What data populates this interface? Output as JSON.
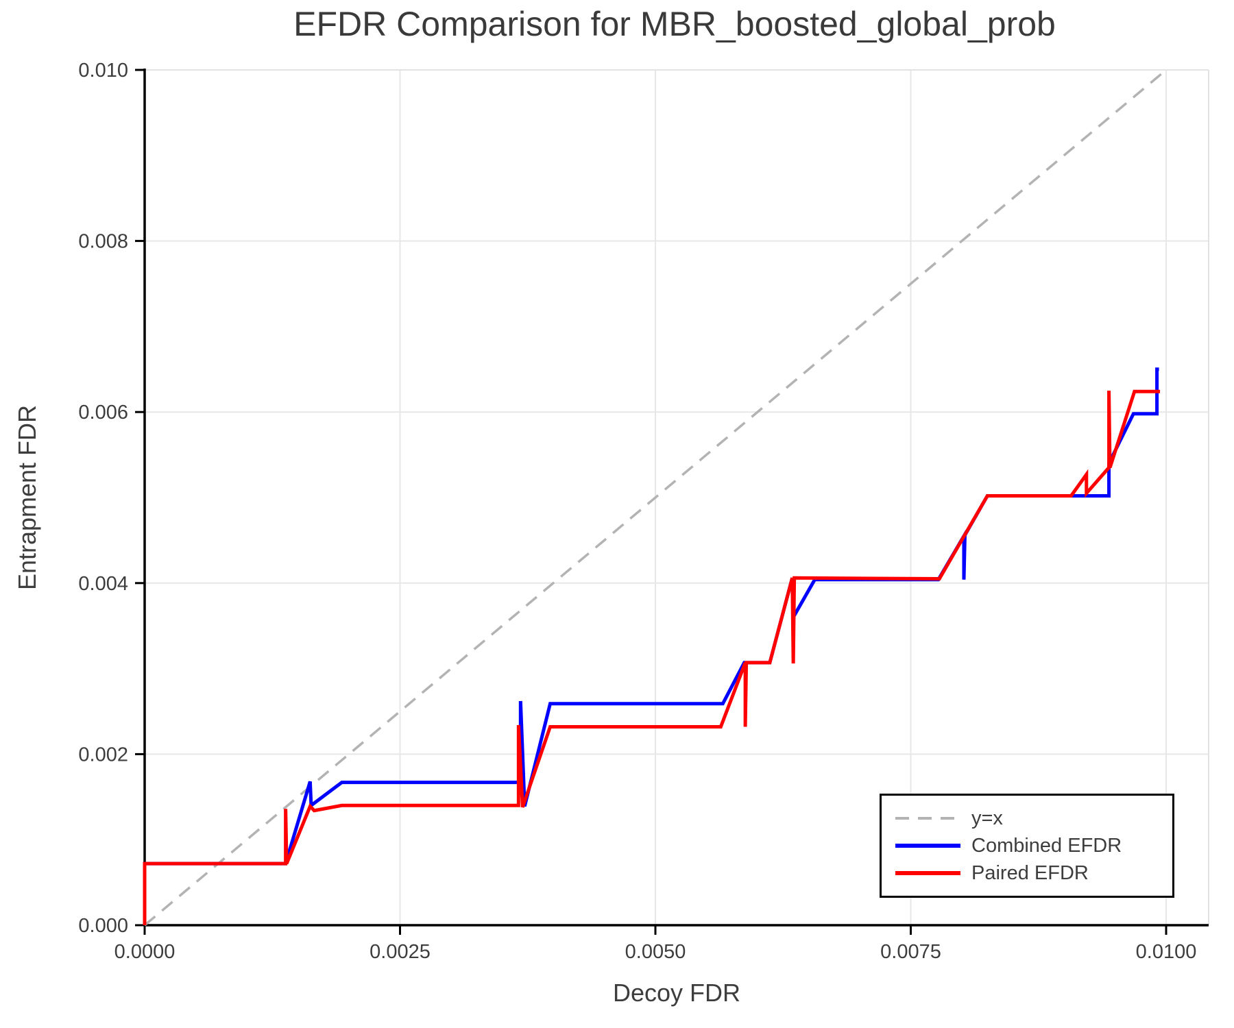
{
  "title": "EFDR Comparison for MBR_boosted_global_prob",
  "chart_data": {
    "type": "line",
    "title": "EFDR Comparison for MBR_boosted_global_prob",
    "xlabel": "Decoy FDR",
    "ylabel": "Entrapment FDR",
    "xlim": [
      0.0,
      0.01
    ],
    "ylim": [
      0.0,
      0.01
    ],
    "grid": true,
    "legend_position": "lower right",
    "xticks": [
      0.0,
      0.0025,
      0.005,
      0.0075,
      0.01
    ],
    "xtick_labels": [
      "0.0000",
      "0.0025",
      "0.0050",
      "0.0075",
      "0.0100"
    ],
    "yticks": [
      0.0,
      0.002,
      0.004,
      0.006,
      0.008,
      0.01
    ],
    "ytick_labels": [
      "0.000",
      "0.002",
      "0.004",
      "0.006",
      "0.008",
      "0.010"
    ],
    "colors": {
      "identity_line": "#b3b3b3",
      "combined_efdr": "#0000ff",
      "paired_efdr": "#ff0000",
      "grid": "#e7e7e7",
      "axis": "#000000",
      "text": "#3d3d3d"
    },
    "series": [
      {
        "name": "y=x",
        "color": "#b3b3b3",
        "dash": [
          20,
          13
        ],
        "points": [
          [
            0.0,
            0.0
          ],
          [
            0.01,
            0.01
          ]
        ]
      },
      {
        "name": "Combined EFDR",
        "color": "#0000ff",
        "dash": null,
        "points": [
          [
            0.0,
            0.0
          ],
          [
            0.0,
            0.00072
          ],
          [
            0.00138,
            0.00072
          ],
          [
            0.00162,
            0.00168
          ],
          [
            0.00163,
            0.0014
          ],
          [
            0.00193,
            0.00167
          ],
          [
            0.00368,
            0.00167
          ],
          [
            0.00368,
            0.00262
          ],
          [
            0.00372,
            0.00139
          ],
          [
            0.00397,
            0.00259
          ],
          [
            0.00566,
            0.00259
          ],
          [
            0.00587,
            0.00307
          ],
          [
            0.00612,
            0.00307
          ],
          [
            0.00634,
            0.00406
          ],
          [
            0.00635,
            0.0036
          ],
          [
            0.00656,
            0.00404
          ],
          [
            0.00777,
            0.00404
          ],
          [
            0.00802,
            0.00455
          ],
          [
            0.00802,
            0.00404
          ],
          [
            0.00803,
            0.00456
          ],
          [
            0.00825,
            0.00502
          ],
          [
            0.00944,
            0.00502
          ],
          [
            0.00944,
            0.0054
          ],
          [
            0.00968,
            0.00598
          ],
          [
            0.00991,
            0.00598
          ],
          [
            0.00991,
            0.0065
          ],
          [
            0.00993,
            0.0065
          ]
        ]
      },
      {
        "name": "Paired EFDR",
        "color": "#ff0000",
        "dash": null,
        "points": [
          [
            0.0,
            0.0
          ],
          [
            0.0,
            0.00072
          ],
          [
            0.00138,
            0.00072
          ],
          [
            0.00138,
            0.00136
          ],
          [
            0.00139,
            0.00072
          ],
          [
            0.00162,
            0.00139
          ],
          [
            0.00166,
            0.00134
          ],
          [
            0.00193,
            0.0014
          ],
          [
            0.00366,
            0.0014
          ],
          [
            0.00366,
            0.00234
          ],
          [
            0.0037,
            0.00138
          ],
          [
            0.00397,
            0.00232
          ],
          [
            0.00564,
            0.00232
          ],
          [
            0.00588,
            0.00307
          ],
          [
            0.00588,
            0.00232
          ],
          [
            0.00589,
            0.00307
          ],
          [
            0.00612,
            0.00307
          ],
          [
            0.00634,
            0.00406
          ],
          [
            0.00635,
            0.00306
          ],
          [
            0.00636,
            0.00406
          ],
          [
            0.00778,
            0.00405
          ],
          [
            0.00825,
            0.00502
          ],
          [
            0.00907,
            0.00502
          ],
          [
            0.00922,
            0.00527
          ],
          [
            0.00922,
            0.00505
          ],
          [
            0.00944,
            0.00535
          ],
          [
            0.00944,
            0.00625
          ],
          [
            0.00945,
            0.00535
          ],
          [
            0.00969,
            0.00624
          ],
          [
            0.00994,
            0.00624
          ]
        ]
      }
    ]
  }
}
